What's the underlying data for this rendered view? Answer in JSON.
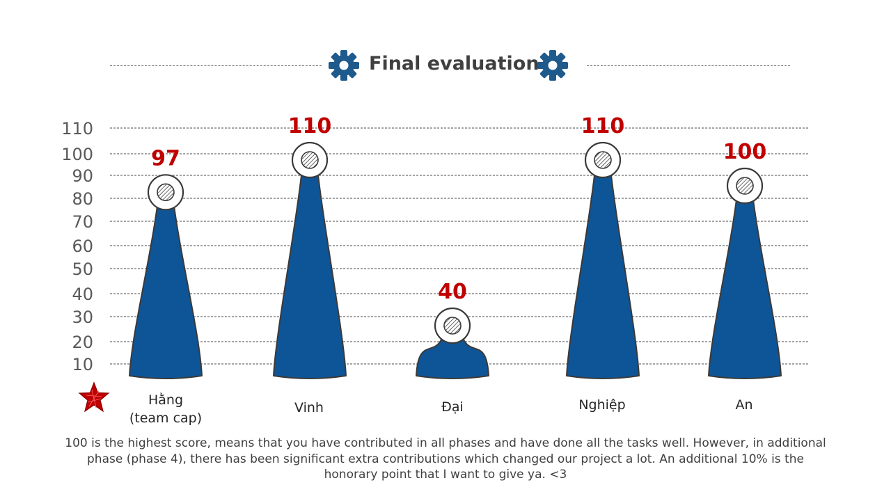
{
  "title": "Final evaluation",
  "chart_data": {
    "type": "bar",
    "shape": "cone",
    "categories": [
      "Hằng\n(team cap)",
      "Vinh",
      "Đại",
      "Nghiệp",
      "An"
    ],
    "values": [
      97,
      110,
      40,
      110,
      100
    ],
    "yticks": [
      10,
      20,
      30,
      40,
      50,
      60,
      70,
      80,
      90,
      100,
      110
    ],
    "ylim": [
      0,
      110
    ],
    "grid": true,
    "bar_color": "#0e5597",
    "value_label_color": "#c00000",
    "marker": "hatched-circle",
    "highlight": {
      "category_index": 0,
      "icon": "star-icon",
      "color": "#c00000"
    }
  },
  "footnote": "100 is the highest score, means that you have contributed in all phases and have done all the tasks well. However, in additional phase (phase 4), there has been significant extra contributions which changed our project a lot. An additional 10% is the honorary point that I want to give ya. <3",
  "colors": {
    "accent": "#0e5597",
    "highlight": "#c00000",
    "text": "#404040"
  }
}
